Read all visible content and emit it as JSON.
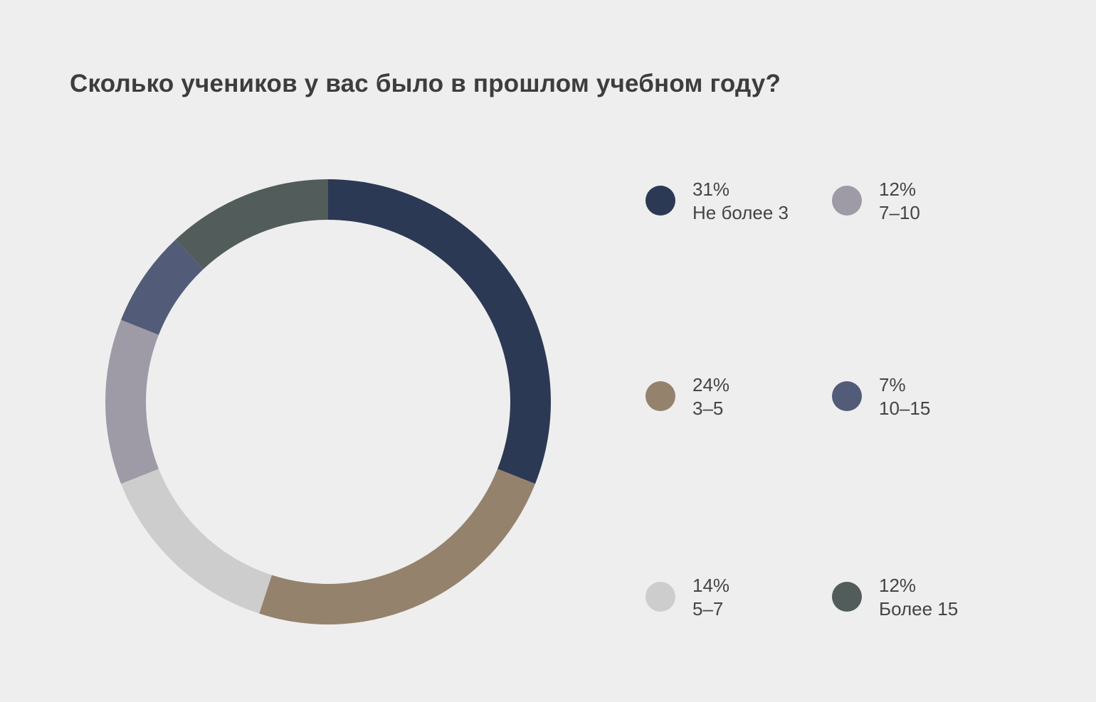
{
  "chart_data": {
    "type": "pie",
    "title": "Сколько учеников у вас было в прошлом учебном году?",
    "slices": [
      {
        "label": "Не более 3",
        "value": 31,
        "value_label": "31%",
        "color": "#2b3954"
      },
      {
        "label": "3–5",
        "value": 24,
        "value_label": "24%",
        "color": "#94826d"
      },
      {
        "label": "5–7",
        "value": 14,
        "value_label": "14%",
        "color": "#cdcdcd"
      },
      {
        "label": "7–10",
        "value": 12,
        "value_label": "12%",
        "color": "#9e9aa6"
      },
      {
        "label": "10–15",
        "value": 7,
        "value_label": "7%",
        "color": "#525c78"
      },
      {
        "label": "Более 15",
        "value": 12,
        "value_label": "12%",
        "color": "#525c5a"
      }
    ],
    "legend_order": [
      0,
      3,
      1,
      4,
      2,
      5
    ],
    "legend_position": "right",
    "donut": true
  }
}
